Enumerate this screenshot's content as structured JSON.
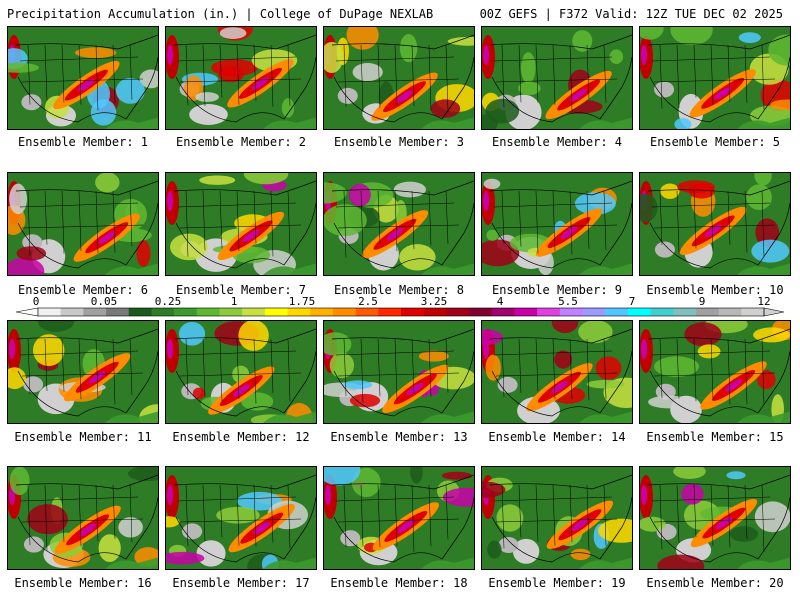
{
  "header": {
    "title": "Precipitation Accumulation (in.) | College of DuPage NEXLAB",
    "run_info": "00Z GEFS | F372 Valid: 12Z TUE DEC 02 2025"
  },
  "panels": [
    {
      "label": "Ensemble Member: 1"
    },
    {
      "label": "Ensemble Member: 2"
    },
    {
      "label": "Ensemble Member: 3"
    },
    {
      "label": "Ensemble Member: 4"
    },
    {
      "label": "Ensemble Member: 5"
    },
    {
      "label": "Ensemble Member: 6"
    },
    {
      "label": "Ensemble Member: 7"
    },
    {
      "label": "Ensemble Member: 8"
    },
    {
      "label": "Ensemble Member: 9"
    },
    {
      "label": "Ensemble Member: 10"
    },
    {
      "label": "Ensemble Member: 11"
    },
    {
      "label": "Ensemble Member: 12"
    },
    {
      "label": "Ensemble Member: 13"
    },
    {
      "label": "Ensemble Member: 14"
    },
    {
      "label": "Ensemble Member: 15"
    },
    {
      "label": "Ensemble Member: 16"
    },
    {
      "label": "Ensemble Member: 17"
    },
    {
      "label": "Ensemble Member: 18"
    },
    {
      "label": "Ensemble Member: 19"
    },
    {
      "label": "Ensemble Member: 20"
    }
  ],
  "colorbar": {
    "tick_labels": [
      "0",
      "0.05",
      "0.25",
      "1",
      "1.75",
      "2.5",
      "3.25",
      "4",
      "5.5",
      "7",
      "9",
      "12"
    ],
    "colors": [
      "#f0f0f0",
      "#c8c8c8",
      "#a0a0a0",
      "#787878",
      "#1c5a1c",
      "#2e7d26",
      "#3c9a2c",
      "#5fb832",
      "#8ccc3a",
      "#c8e040",
      "#ffff00",
      "#ffd800",
      "#ffb000",
      "#ff8c00",
      "#ff5a00",
      "#ff2800",
      "#e00000",
      "#c00000",
      "#a00018",
      "#800030",
      "#a00070",
      "#c800a8",
      "#e040e0",
      "#c080ff",
      "#9a9aff",
      "#50c8ff",
      "#00ffff",
      "#40d0d0",
      "#80c0c0",
      "#a0a0a0",
      "#b8b8b8",
      "#d0d0d0"
    ]
  }
}
